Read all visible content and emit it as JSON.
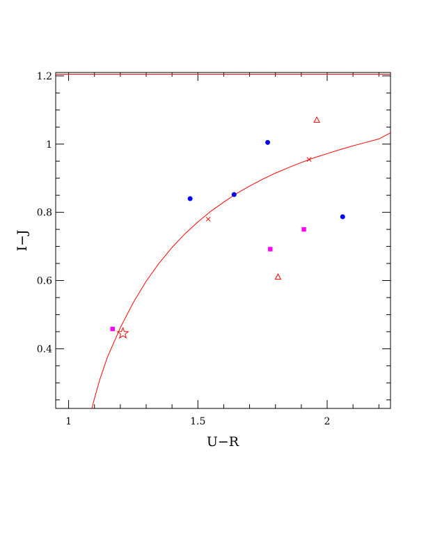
{
  "chart_data": {
    "type": "scatter",
    "title": "",
    "xlabel": "U−R",
    "ylabel": "I−J",
    "xlim": [
      0.95,
      2.245
    ],
    "ylim": [
      0.225,
      1.21
    ],
    "x_ticks": [
      1,
      1.5,
      2
    ],
    "x_tick_labels": [
      "1",
      "1.5",
      "2"
    ],
    "y_ticks": [
      0.4,
      0.6,
      0.8,
      1,
      1.2
    ],
    "y_tick_labels": [
      "0.4",
      "0.6",
      "0.8",
      "1",
      "1.2"
    ],
    "grid": false,
    "legend": "none",
    "series": [
      {
        "marker": "circle",
        "color": "#0000ff",
        "points": [
          [
            1.47,
            0.84
          ],
          [
            1.64,
            0.852
          ],
          [
            1.77,
            1.005
          ],
          [
            2.06,
            0.787
          ]
        ]
      },
      {
        "marker": "square",
        "color": "#ff00ff",
        "points": [
          [
            1.17,
            0.458
          ],
          [
            1.78,
            0.692
          ],
          [
            1.91,
            0.75
          ]
        ]
      },
      {
        "marker": "triangle",
        "color": "#ff0000",
        "points": [
          [
            1.96,
            1.07
          ],
          [
            1.81,
            0.61
          ]
        ]
      },
      {
        "marker": "cross",
        "color": "#ff0000",
        "points": [
          [
            1.54,
            0.78
          ],
          [
            1.93,
            0.955
          ]
        ]
      },
      {
        "marker": "star",
        "color": "#ff0000",
        "points": [
          [
            1.21,
            0.445
          ]
        ]
      }
    ],
    "curve": {
      "color": "#ff0000",
      "points": [
        [
          1.09,
          0.225
        ],
        [
          1.1,
          0.254
        ],
        [
          1.12,
          0.308
        ],
        [
          1.15,
          0.375
        ],
        [
          1.2,
          0.462
        ],
        [
          1.25,
          0.535
        ],
        [
          1.3,
          0.598
        ],
        [
          1.35,
          0.651
        ],
        [
          1.4,
          0.697
        ],
        [
          1.45,
          0.737
        ],
        [
          1.5,
          0.772
        ],
        [
          1.55,
          0.803
        ],
        [
          1.6,
          0.83
        ],
        [
          1.65,
          0.855
        ],
        [
          1.7,
          0.877
        ],
        [
          1.75,
          0.897
        ],
        [
          1.8,
          0.915
        ],
        [
          1.85,
          0.931
        ],
        [
          1.9,
          0.946
        ],
        [
          1.95,
          0.96
        ],
        [
          2.0,
          0.972
        ],
        [
          2.05,
          0.984
        ],
        [
          2.1,
          0.995
        ],
        [
          2.15,
          1.005
        ],
        [
          2.2,
          1.015
        ],
        [
          2.245,
          1.033
        ]
      ]
    },
    "top_line": {
      "color": "#ff0000",
      "y": 1.205
    }
  }
}
